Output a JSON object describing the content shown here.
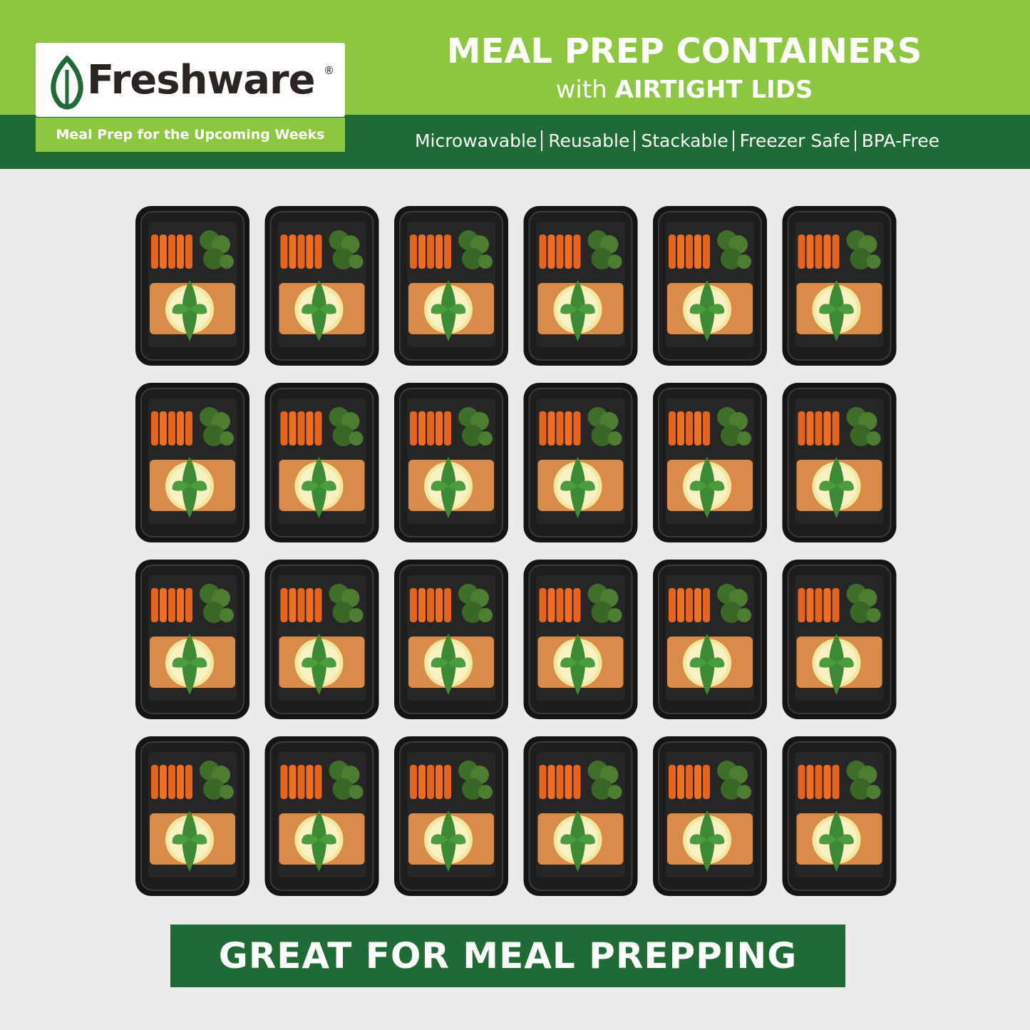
{
  "header": {
    "brand": "Freshware",
    "registered": "®",
    "tagline": "Meal Prep for the Upcoming Weeks",
    "title": "MEAL PREP CONTAINERS",
    "subtitle_lead": "with",
    "subtitle_bold": "AIRTIGHT LIDS",
    "features": [
      "Microwavable",
      "Reusable",
      "Stackable",
      "Freezer Safe",
      "BPA-Free"
    ]
  },
  "footer": {
    "banner": "GREAT FOR MEAL PREPPING"
  }
}
